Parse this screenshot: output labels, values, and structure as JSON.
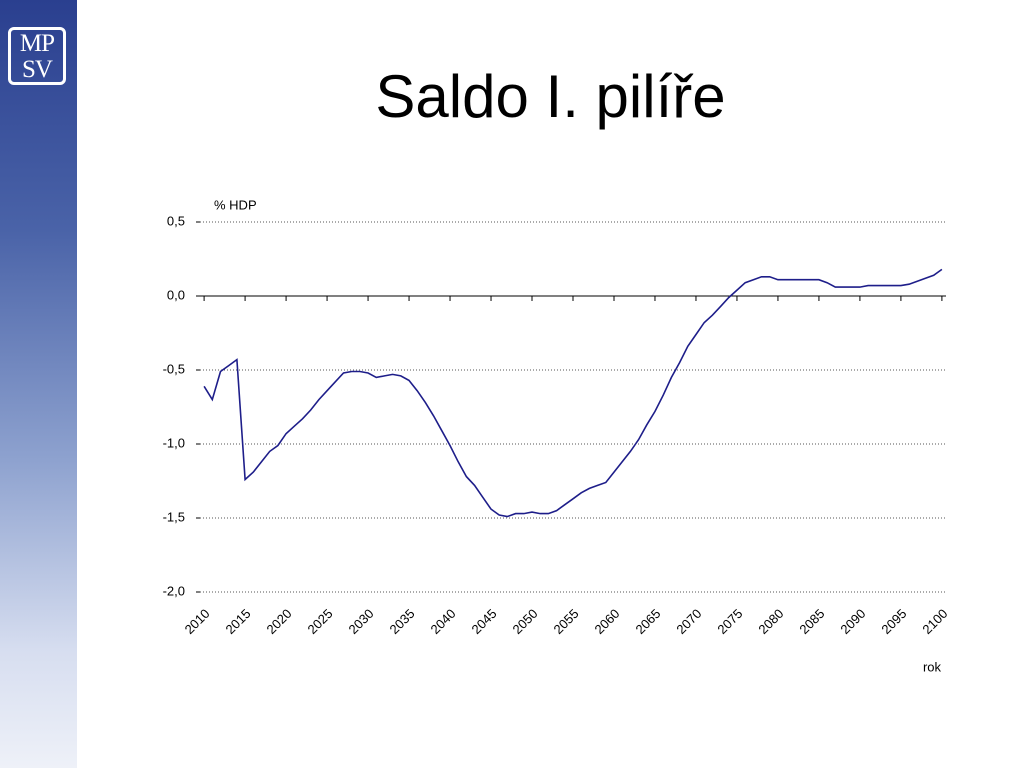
{
  "logo": {
    "line1": "MP",
    "line2": "SV"
  },
  "chart_data": {
    "type": "line",
    "title": "Saldo I. pilíře",
    "y_label": "% HDP",
    "x_label": "rok",
    "x": [
      2010,
      2011,
      2012,
      2013,
      2014,
      2015,
      2016,
      2017,
      2018,
      2019,
      2020,
      2021,
      2022,
      2023,
      2024,
      2025,
      2026,
      2027,
      2028,
      2029,
      2030,
      2031,
      2032,
      2033,
      2034,
      2035,
      2036,
      2037,
      2038,
      2039,
      2040,
      2041,
      2042,
      2043,
      2044,
      2045,
      2046,
      2047,
      2048,
      2049,
      2050,
      2051,
      2052,
      2053,
      2054,
      2055,
      2056,
      2057,
      2058,
      2059,
      2060,
      2061,
      2062,
      2063,
      2064,
      2065,
      2066,
      2067,
      2068,
      2069,
      2070,
      2071,
      2072,
      2073,
      2074,
      2075,
      2076,
      2077,
      2078,
      2079,
      2080,
      2081,
      2082,
      2083,
      2084,
      2085,
      2086,
      2087,
      2088,
      2089,
      2090,
      2091,
      2092,
      2093,
      2094,
      2095,
      2096,
      2097,
      2098,
      2099,
      2100
    ],
    "series": [
      {
        "color": "#1e1e8a",
        "values": [
          -0.61,
          -0.7,
          -0.51,
          -0.47,
          -0.43,
          -1.24,
          -1.19,
          -1.12,
          -1.05,
          -1.01,
          -0.93,
          -0.88,
          -0.83,
          -0.77,
          -0.7,
          -0.64,
          -0.58,
          -0.52,
          -0.51,
          -0.51,
          -0.52,
          -0.55,
          -0.54,
          -0.53,
          -0.54,
          -0.57,
          -0.64,
          -0.72,
          -0.81,
          -0.91,
          -1.01,
          -1.12,
          -1.22,
          -1.28,
          -1.36,
          -1.44,
          -1.48,
          -1.49,
          -1.47,
          -1.47,
          -1.46,
          -1.47,
          -1.47,
          -1.45,
          -1.41,
          -1.37,
          -1.33,
          -1.3,
          -1.28,
          -1.26,
          -1.19,
          -1.12,
          -1.05,
          -0.97,
          -0.87,
          -0.78,
          -0.67,
          -0.55,
          -0.45,
          -0.34,
          -0.26,
          -0.18,
          -0.13,
          -0.07,
          -0.01,
          0.04,
          0.09,
          0.11,
          0.13,
          0.13,
          0.11,
          0.11,
          0.11,
          0.11,
          0.11,
          0.11,
          0.09,
          0.06,
          0.06,
          0.06,
          0.06,
          0.07,
          0.07,
          0.07,
          0.07,
          0.07,
          0.08,
          0.1,
          0.12,
          0.14,
          0.18
        ]
      }
    ],
    "xlim": [
      2009.5,
      2100.5
    ],
    "xticks": [
      2010,
      2015,
      2020,
      2025,
      2030,
      2035,
      2040,
      2045,
      2050,
      2055,
      2060,
      2065,
      2070,
      2075,
      2080,
      2085,
      2090,
      2095,
      2100
    ],
    "ylim": [
      -2,
      0.5
    ],
    "yticks": [
      {
        "value": 0.5,
        "label": "0,5"
      },
      {
        "value": 0,
        "label": "0,0"
      },
      {
        "value": -0.5,
        "label": "-0,5"
      },
      {
        "value": -1,
        "label": "-1,0"
      },
      {
        "value": -1.5,
        "label": "-1,5"
      },
      {
        "value": -2,
        "label": "-2,0"
      }
    ],
    "grid": true
  }
}
